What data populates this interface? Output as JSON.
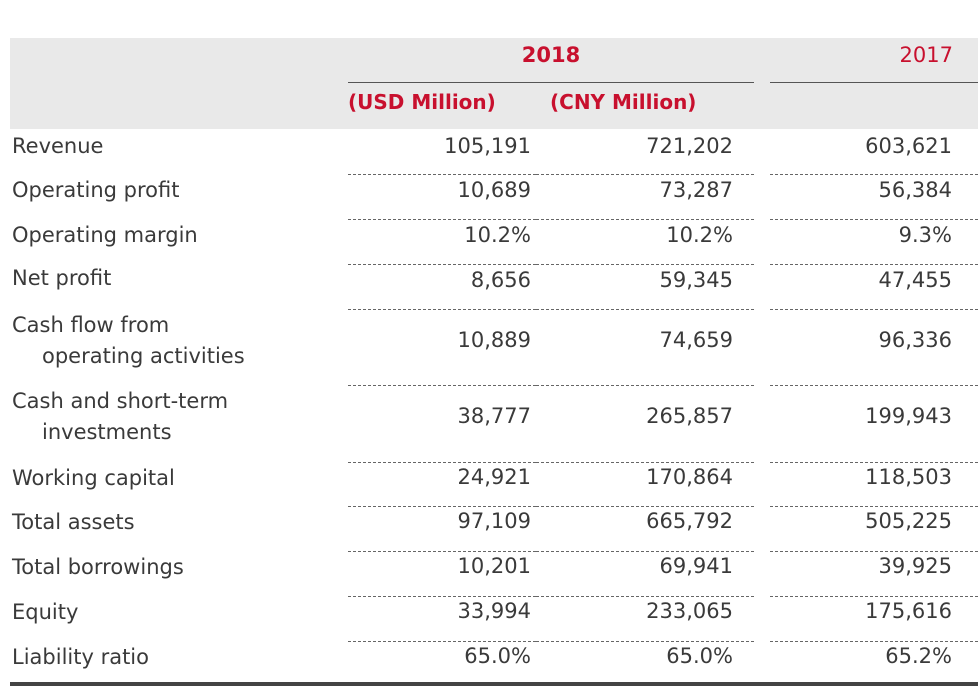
{
  "header": {
    "year_2018": "2018",
    "year_2017": "2017",
    "unit_usd": "(USD Million)",
    "unit_cny": "(CNY Million)"
  },
  "rows": [
    {
      "label_1": "Revenue",
      "label_2": "",
      "usd_2018": "105,191",
      "cny_2018": "721,202",
      "cny_2017": "603,621"
    },
    {
      "label_1": "Operating profit",
      "label_2": "",
      "usd_2018": "10,689",
      "cny_2018": "73,287",
      "cny_2017": "56,384"
    },
    {
      "label_1": "Operating margin",
      "label_2": "",
      "usd_2018": "10.2%",
      "cny_2018": "10.2%",
      "cny_2017": "9.3%"
    },
    {
      "label_1": "Net profit",
      "label_2": "",
      "usd_2018": "8,656",
      "cny_2018": "59,345",
      "cny_2017": "47,455"
    },
    {
      "label_1": "Cash flow from",
      "label_2": "operating activities",
      "usd_2018": "10,889",
      "cny_2018": "74,659",
      "cny_2017": "96,336"
    },
    {
      "label_1": "Cash and short-term",
      "label_2": "investments",
      "usd_2018": "38,777",
      "cny_2018": "265,857",
      "cny_2017": "199,943"
    },
    {
      "label_1": "Working capital",
      "label_2": "",
      "usd_2018": "24,921",
      "cny_2018": "170,864",
      "cny_2017": "118,503"
    },
    {
      "label_1": "Total assets",
      "label_2": "",
      "usd_2018": "97,109",
      "cny_2018": "665,792",
      "cny_2017": "505,225"
    },
    {
      "label_1": "Total borrowings",
      "label_2": "",
      "usd_2018": "10,201",
      "cny_2018": "69,941",
      "cny_2017": "39,925"
    },
    {
      "label_1": "Equity",
      "label_2": "",
      "usd_2018": "33,994",
      "cny_2018": "233,065",
      "cny_2017": "175,616"
    },
    {
      "label_1": "Liability ratio",
      "label_2": "",
      "usd_2018": "65.0%",
      "cny_2018": "65.0%",
      "cny_2017": "65.2%"
    }
  ]
}
